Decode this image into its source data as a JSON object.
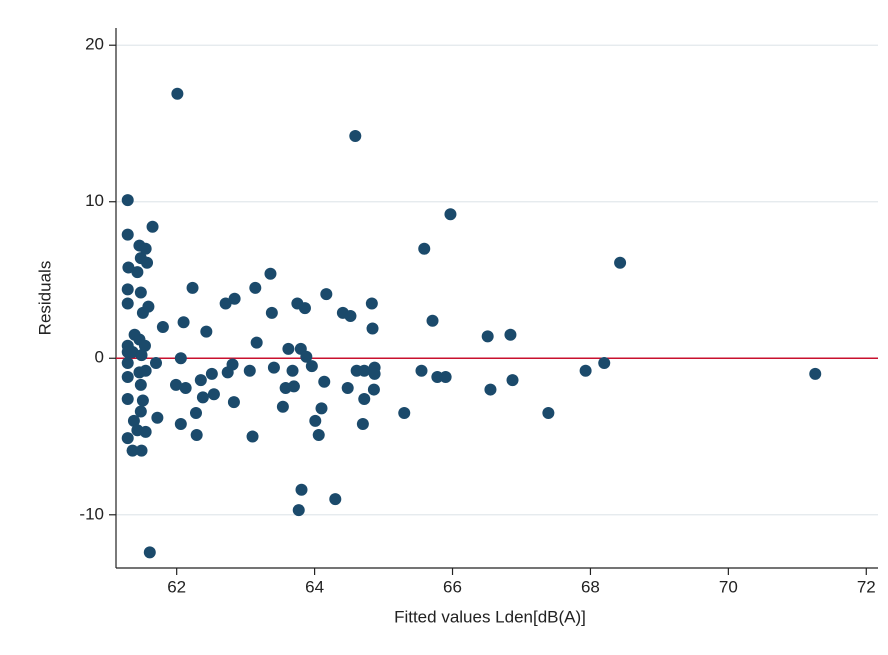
{
  "chart_data": {
    "type": "scatter",
    "xlabel": "Fitted values Lden[dB(A)]",
    "ylabel": "Residuals",
    "xlim": [
      61.12,
      72.17
    ],
    "ylim": [
      -13.4,
      21.1
    ],
    "xticks": [
      62,
      64,
      66,
      68,
      70,
      72
    ],
    "yticks": [
      -10,
      0,
      10,
      20
    ],
    "grid": true,
    "hline": {
      "y": 0,
      "color": "#c8102e"
    },
    "series": [
      {
        "color": "#1b4a6b",
        "x": [
          61.29,
          61.29,
          61.3,
          61.29,
          61.29,
          61.29,
          61.29,
          61.29,
          61.29,
          61.29,
          61.29,
          61.36,
          61.39,
          61.38,
          61.36,
          61.43,
          61.46,
          61.48,
          61.48,
          61.51,
          61.46,
          61.49,
          61.46,
          61.48,
          61.51,
          61.48,
          61.43,
          61.49,
          61.55,
          61.57,
          61.54,
          61.55,
          61.55,
          61.59,
          61.61,
          61.65,
          61.7,
          61.72,
          61.8,
          61.99,
          62.01,
          62.06,
          62.1,
          62.06,
          62.13,
          62.23,
          62.28,
          62.29,
          62.35,
          62.38,
          62.43,
          62.51,
          62.54,
          62.71,
          62.74,
          62.84,
          62.81,
          62.83,
          63.06,
          63.1,
          63.14,
          63.16,
          63.36,
          63.38,
          63.41,
          63.54,
          63.58,
          63.62,
          63.68,
          63.7,
          63.77,
          63.75,
          63.81,
          63.8,
          63.86,
          63.88,
          63.96,
          64.01,
          64.06,
          64.1,
          64.14,
          64.17,
          64.3,
          64.41,
          64.48,
          64.52,
          64.59,
          64.61,
          64.7,
          64.72,
          64.72,
          64.83,
          64.84,
          64.87,
          64.87,
          64.86,
          65.3,
          65.55,
          65.59,
          65.71,
          65.78,
          65.9,
          65.97,
          66.51,
          66.55,
          66.84,
          66.87,
          67.39,
          67.93,
          68.2,
          68.43,
          71.26
        ],
        "values": [
          10.1,
          7.9,
          5.8,
          4.4,
          3.5,
          0.8,
          0.4,
          -0.3,
          -1.2,
          -2.6,
          -5.1,
          0.4,
          1.5,
          -4.0,
          -5.9,
          5.5,
          7.2,
          6.4,
          4.2,
          2.9,
          1.2,
          0.2,
          -0.9,
          -1.7,
          -2.7,
          -3.4,
          -4.6,
          -5.9,
          7.0,
          6.1,
          0.8,
          -0.8,
          -4.7,
          3.3,
          -12.4,
          8.4,
          -0.3,
          -3.8,
          2.0,
          -1.7,
          16.9,
          0.0,
          2.3,
          -4.2,
          -1.9,
          4.5,
          -3.5,
          -4.9,
          -1.4,
          -2.5,
          1.7,
          -1.0,
          -2.3,
          3.5,
          -0.9,
          3.8,
          -0.4,
          -2.8,
          -0.8,
          -5.0,
          4.5,
          1.0,
          5.4,
          2.9,
          -0.6,
          -3.1,
          -1.9,
          0.6,
          -0.8,
          -1.8,
          -9.7,
          3.5,
          -8.4,
          0.6,
          3.2,
          0.1,
          -0.5,
          -4.0,
          -4.9,
          -3.2,
          -1.5,
          4.1,
          -9.0,
          2.9,
          -1.9,
          2.7,
          14.2,
          -0.8,
          -4.2,
          -2.6,
          -0.8,
          3.5,
          1.9,
          -0.6,
          -1.0,
          -2.0,
          -3.5,
          -0.8,
          7.0,
          2.4,
          -1.2,
          -1.2,
          9.2,
          1.4,
          -2.0,
          1.5,
          -1.4,
          -3.5,
          -0.8,
          -0.3,
          6.1,
          -1.0
        ]
      }
    ]
  }
}
